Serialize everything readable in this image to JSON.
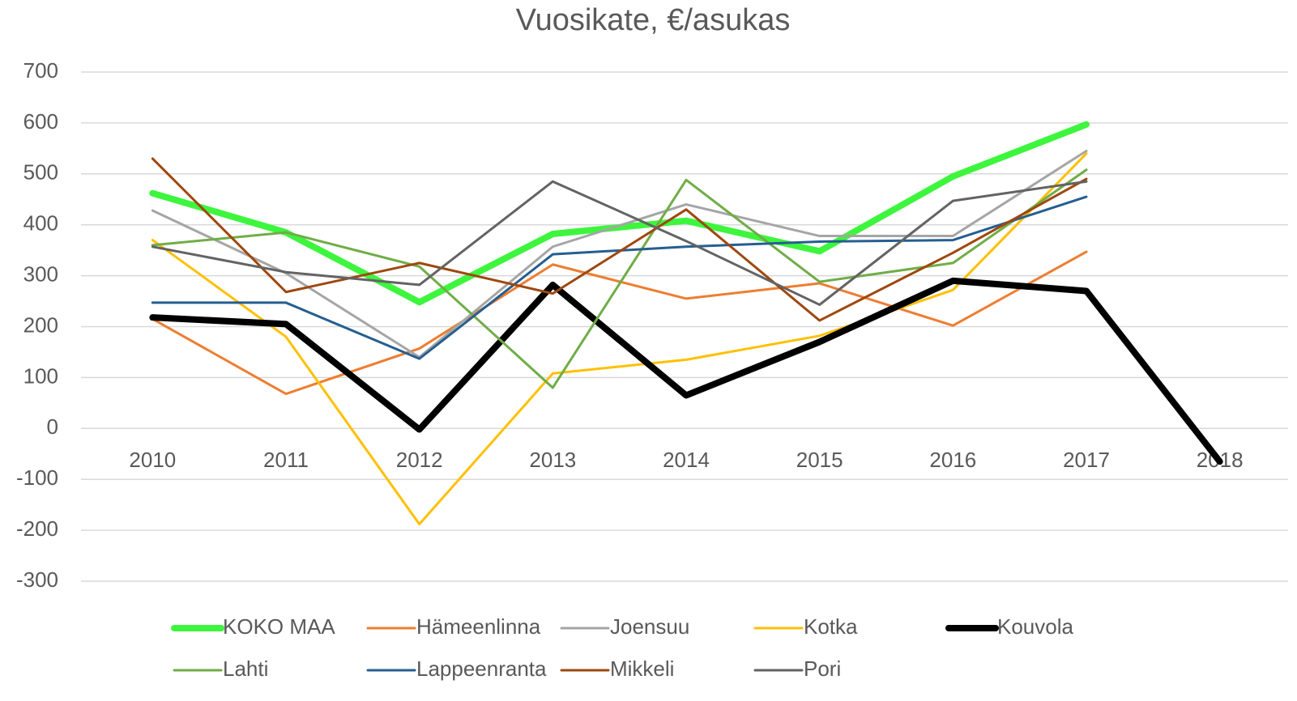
{
  "chart_data": {
    "type": "line",
    "title": "Vuosikate, €/asukas",
    "categories": [
      "2010",
      "2011",
      "2012",
      "2013",
      "2014",
      "2015",
      "2016",
      "2017",
      "2018"
    ],
    "series": [
      {
        "name": "KOKO MAA",
        "color": "#3ef53e",
        "line_width": 8,
        "values": [
          462,
          385,
          248,
          382,
          408,
          348,
          495,
          597,
          null
        ]
      },
      {
        "name": "Hämeenlinna",
        "color": "#ed7d31",
        "line_width": 3,
        "values": [
          215,
          68,
          157,
          322,
          255,
          285,
          202,
          347,
          null
        ]
      },
      {
        "name": "Joensuu",
        "color": "#a5a5a5",
        "line_width": 3,
        "values": [
          428,
          305,
          140,
          357,
          440,
          378,
          378,
          545,
          null
        ]
      },
      {
        "name": "Kotka",
        "color": "#ffc000",
        "line_width": 3,
        "values": [
          370,
          180,
          -188,
          108,
          135,
          182,
          272,
          540,
          null
        ]
      },
      {
        "name": "Kouvola",
        "color": "#000000",
        "line_width": 8,
        "values": [
          218,
          205,
          -2,
          282,
          65,
          170,
          290,
          270,
          -65
        ]
      },
      {
        "name": "Lahti",
        "color": "#70ad47",
        "line_width": 3,
        "values": [
          360,
          385,
          318,
          80,
          488,
          288,
          325,
          508,
          null
        ]
      },
      {
        "name": "Lappeenranta",
        "color": "#255e91",
        "line_width": 3,
        "values": [
          247,
          247,
          137,
          342,
          357,
          367,
          370,
          455,
          null
        ]
      },
      {
        "name": "Mikkeli",
        "color": "#9e480e",
        "line_width": 3,
        "values": [
          530,
          268,
          325,
          265,
          430,
          212,
          345,
          490,
          null
        ]
      },
      {
        "name": "Pori",
        "color": "#636363",
        "line_width": 3,
        "values": [
          357,
          307,
          282,
          485,
          368,
          243,
          447,
          485,
          null
        ]
      }
    ],
    "ylim": [
      -300,
      700
    ],
    "yticks": [
      -300,
      -200,
      -100,
      0,
      100,
      200,
      300,
      400,
      500,
      600,
      700
    ],
    "grid": true,
    "legend": "bottom"
  }
}
